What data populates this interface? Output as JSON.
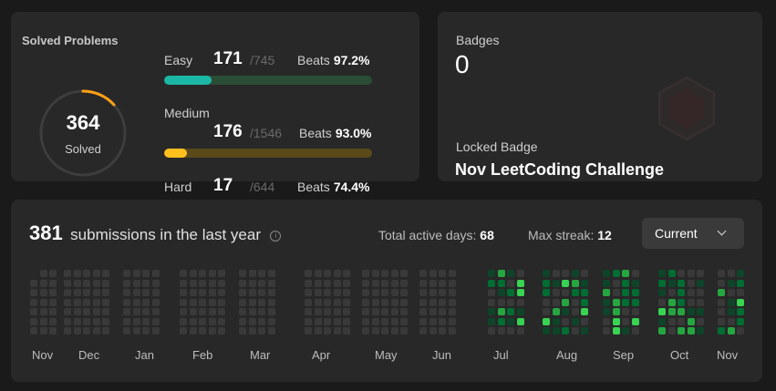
{
  "solved": {
    "title": "Solved Problems",
    "total": "364",
    "total_label": "Solved",
    "difficulties": [
      {
        "name": "Easy",
        "count": "171",
        "total": "/745",
        "beats_label": "Beats",
        "beats": "97.2%",
        "color": "#1cb8a6",
        "track": "#294d35",
        "progress": 0.23
      },
      {
        "name": "Medium",
        "count": "176",
        "total": "/1546",
        "beats_label": "Beats",
        "beats": "93.0%",
        "color": "#ffc01e",
        "track": "#5a4a1a",
        "progress": 0.11
      },
      {
        "name": "Hard",
        "count": "17",
        "total": "/644",
        "beats_label": "Beats",
        "beats": "74.4%",
        "color": "#ef4743",
        "track": "#5a2a2a",
        "progress": 0.03
      }
    ]
  },
  "badges": {
    "title": "Badges",
    "count": "0",
    "locked_label": "Locked Badge",
    "locked_name": "Nov LeetCoding Challenge"
  },
  "submissions": {
    "count": "381",
    "label": "submissions in the last year",
    "active_label": "Total active days:",
    "active_value": "68",
    "streak_label": "Max streak:",
    "streak_value": "12",
    "dropdown": "Current",
    "months": [
      "Nov",
      "Dec",
      "Jan",
      "Feb",
      "Mar",
      "Apr",
      "May",
      "Jun",
      "Jul",
      "Aug",
      "Sep",
      "Oct",
      "Nov"
    ]
  },
  "colors": {
    "accent": "#ffa116",
    "cell_empty": "#393939",
    "cell_l1": "#0e4429",
    "cell_l2": "#006d32",
    "cell_l3": "#26a641",
    "cell_l4": "#39d353"
  }
}
